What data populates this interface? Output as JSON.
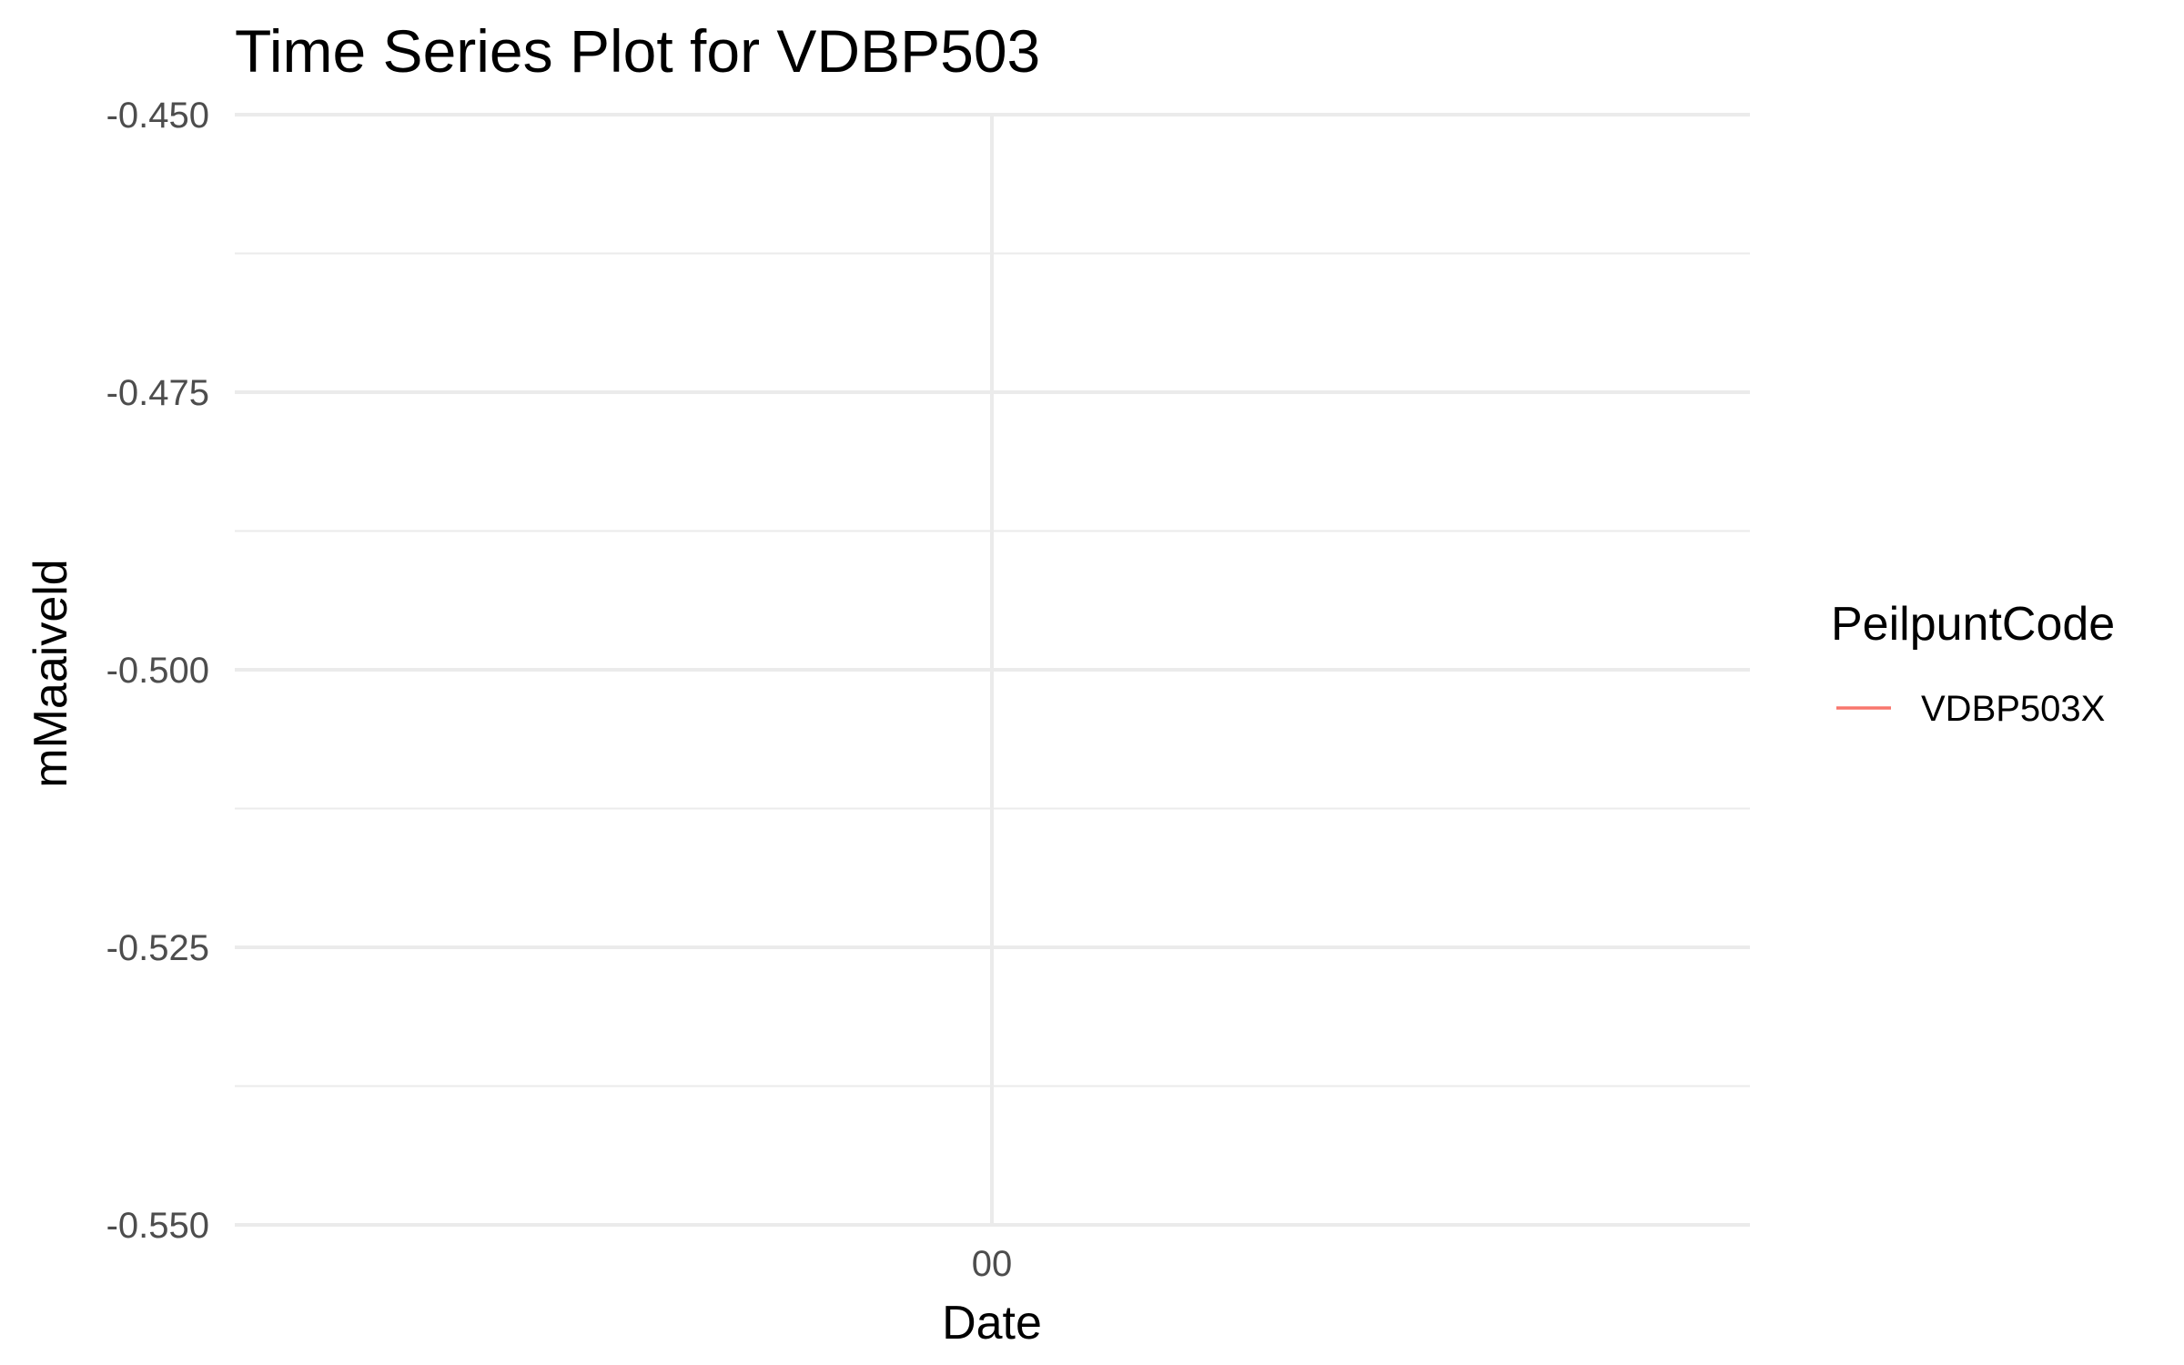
{
  "chart_data": {
    "type": "line",
    "title": "Time Series Plot for VDBP503",
    "xlabel": "Date",
    "ylabel": "mMaaiveld",
    "x_ticks": [
      "00"
    ],
    "y_ticks": [
      -0.45,
      -0.475,
      -0.5,
      -0.525,
      -0.55
    ],
    "y_tick_labels": [
      "-0.450",
      "-0.475",
      "-0.500",
      "-0.525",
      "-0.550"
    ],
    "ylim": [
      -0.55,
      -0.45
    ],
    "grid": true,
    "legend": {
      "title": "PeilpuntCode",
      "placement": "right"
    },
    "series": [
      {
        "name": "VDBP503X",
        "color": "#f8766d",
        "values": []
      }
    ]
  }
}
